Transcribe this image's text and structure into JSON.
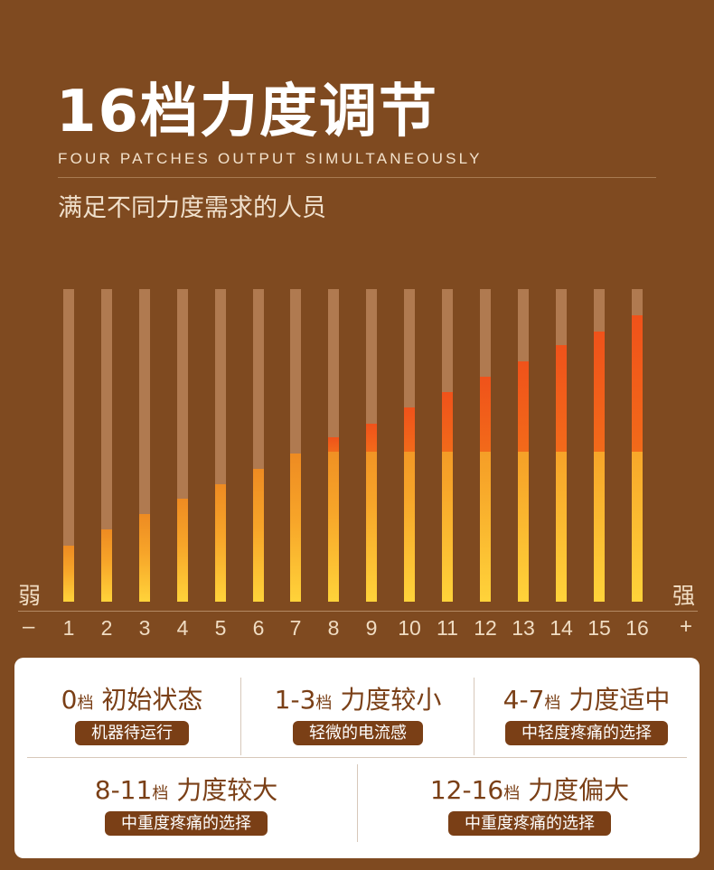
{
  "title": "16档力度调节",
  "subtitle_en": "FOUR PATCHES OUTPUT SIMULTANEOUSLY",
  "subtitle_cn": "满足不同力度需求的人员",
  "scale": {
    "weak_label": "弱",
    "strong_label": "强",
    "minus": "–",
    "plus": "+",
    "levels": [
      "1",
      "2",
      "3",
      "4",
      "5",
      "6",
      "7",
      "8",
      "9",
      "10",
      "11",
      "12",
      "13",
      "14",
      "15",
      "16"
    ],
    "level_fraction": [
      0.18,
      0.23,
      0.28,
      0.33,
      0.375,
      0.425,
      0.475,
      0.525,
      0.57,
      0.62,
      0.67,
      0.72,
      0.77,
      0.82,
      0.865,
      0.915
    ]
  },
  "colors": {
    "background": "#7f4a20",
    "track": "#b07a50",
    "fill_low": "#ffd33a",
    "fill_mid": "#f7a529",
    "fill_hot": "#f0521a",
    "accent_brown": "#7a3f16"
  },
  "modes": [
    {
      "range": "0",
      "unit": "档",
      "desc": "初始状态",
      "note": "机器待运行"
    },
    {
      "range": "1-3",
      "unit": "档",
      "desc": "力度较小",
      "note": "轻微的电流感"
    },
    {
      "range": "4-7",
      "unit": "档",
      "desc": "力度适中",
      "note": "中轻度疼痛的选择"
    },
    {
      "range": "8-11",
      "unit": "档",
      "desc": "力度较大",
      "note": "中重度疼痛的选择"
    },
    {
      "range": "12-16",
      "unit": "档",
      "desc": "力度偏大",
      "note": "中重度疼痛的选择"
    }
  ]
}
